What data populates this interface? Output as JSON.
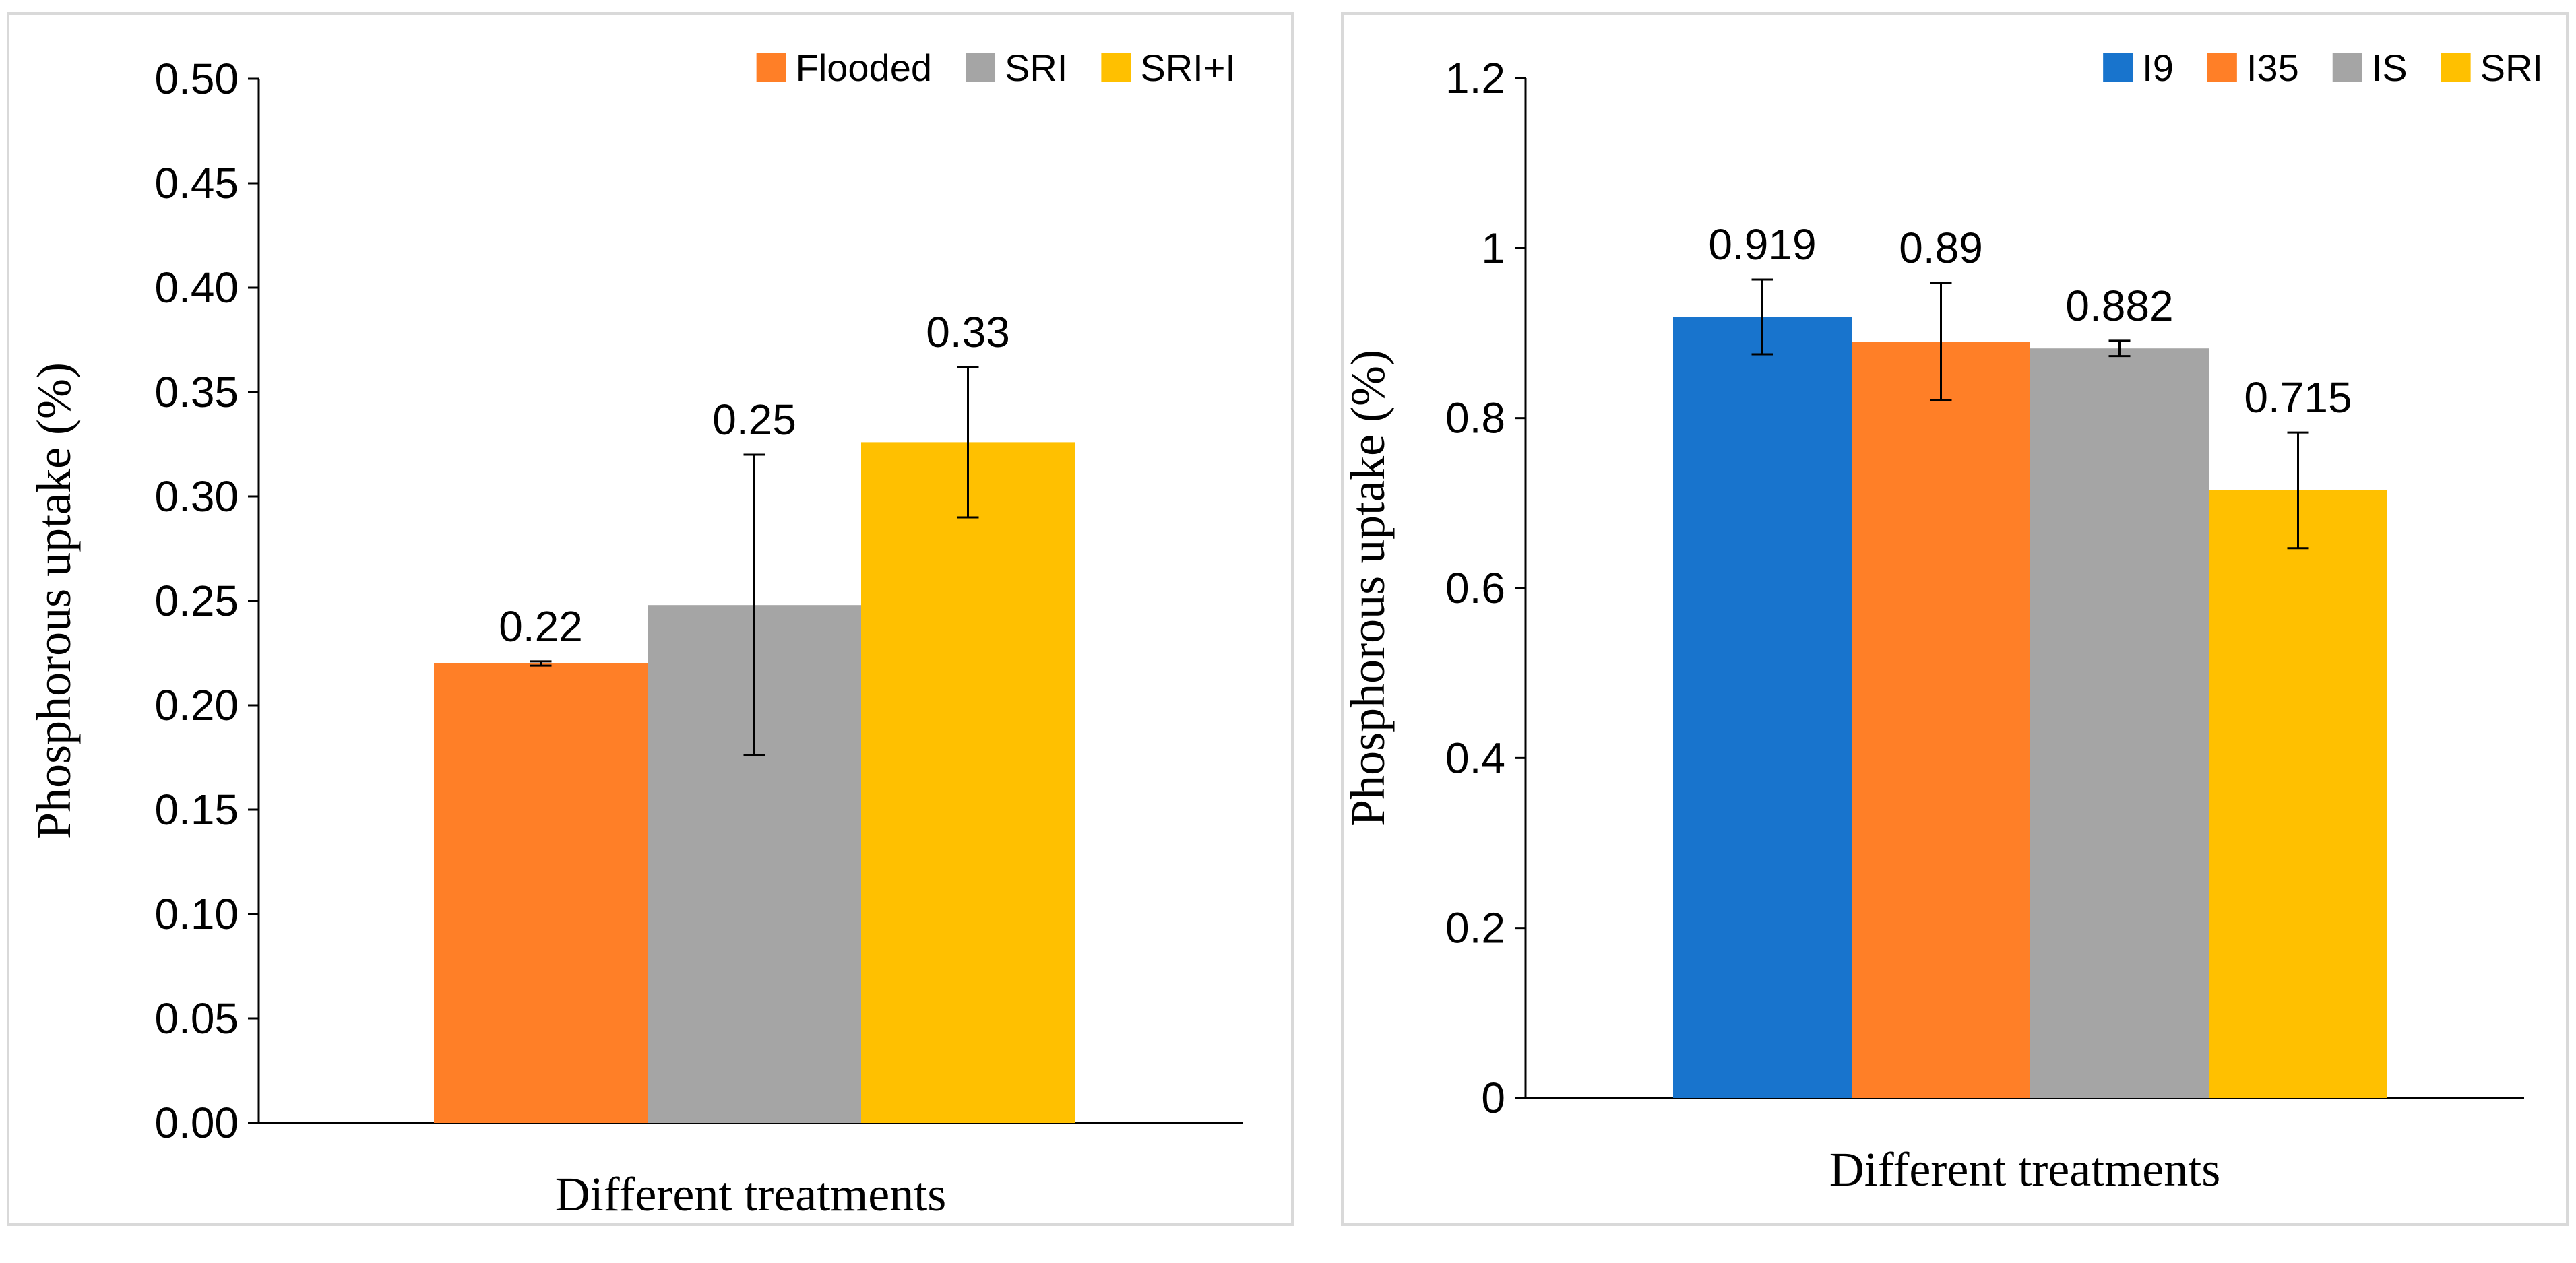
{
  "chart_data": [
    {
      "type": "bar",
      "xlabel": "Different treatments",
      "ylabel": "Phosphorous uptake (%)",
      "ylim": [
        0,
        0.5
      ],
      "yticks": [
        "0.00",
        "0.05",
        "0.10",
        "0.15",
        "0.20",
        "0.25",
        "0.30",
        "0.35",
        "0.40",
        "0.45",
        "0.50"
      ],
      "grid": false,
      "legend_position": "top-right",
      "series": [
        {
          "name": "Flooded",
          "value": 0.22,
          "label": "0.22",
          "error": 0.001,
          "color": "#FF7F27"
        },
        {
          "name": "SRI",
          "value": 0.248,
          "label": "0.25",
          "error": 0.072,
          "color": "#A5A5A5"
        },
        {
          "name": "SRI+I",
          "value": 0.326,
          "label": "0.33",
          "error": 0.036,
          "color": "#FFC000"
        }
      ]
    },
    {
      "type": "bar",
      "xlabel": "Different treatments",
      "ylabel": "Phosphorous uptake (%)",
      "ylim": [
        0,
        1.2
      ],
      "yticks": [
        "0",
        "0.2",
        "0.4",
        "0.6",
        "0.8",
        "1",
        "1.2"
      ],
      "grid": false,
      "legend_position": "top-right",
      "series": [
        {
          "name": "I9",
          "value": 0.919,
          "label": "0.919",
          "error": 0.044,
          "color": "#1874CD"
        },
        {
          "name": "I35",
          "value": 0.89,
          "label": "0.89",
          "error": 0.069,
          "color": "#FF7F27"
        },
        {
          "name": "IS",
          "value": 0.882,
          "label": "0.882",
          "error": 0.009,
          "color": "#A5A5A5"
        },
        {
          "name": "SRI",
          "value": 0.715,
          "label": "0.715",
          "error": 0.068,
          "color": "#FFC000"
        }
      ]
    }
  ]
}
